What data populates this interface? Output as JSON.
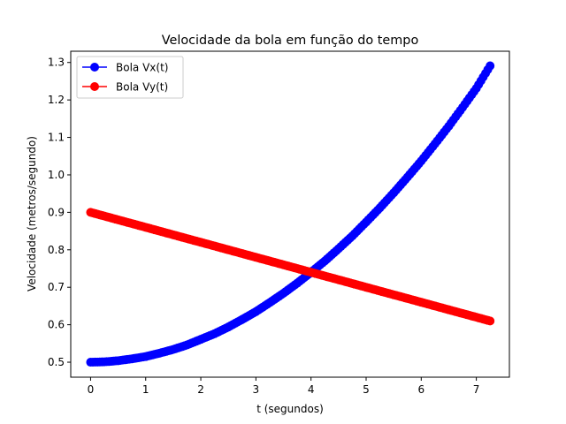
{
  "chart_data": {
    "type": "line",
    "title": "Velocidade da bola em função do tempo",
    "xlabel": "t (segundos)",
    "ylabel": "Velocidade (metros/segundo)",
    "xlim": [
      -0.36,
      7.6
    ],
    "ylim": [
      0.46,
      1.33
    ],
    "xticks": [
      0,
      1,
      2,
      3,
      4,
      5,
      6,
      7
    ],
    "yticks": [
      0.5,
      0.6,
      0.7,
      0.8,
      0.9,
      1.0,
      1.1,
      1.2,
      1.3
    ],
    "grid": false,
    "legend_position": "top-left",
    "x": [
      0,
      0.25,
      0.5,
      0.75,
      1.0,
      1.25,
      1.5,
      1.75,
      2.0,
      2.25,
      2.5,
      2.75,
      3.0,
      3.25,
      3.5,
      3.75,
      4.0,
      4.25,
      4.5,
      4.75,
      5.0,
      5.25,
      5.5,
      5.75,
      6.0,
      6.25,
      6.5,
      6.75,
      7.0,
      7.25
    ],
    "series": [
      {
        "name": "Bola Vx(t)",
        "color": "#0000ff",
        "marker": "circle",
        "values": [
          0.5,
          0.501,
          0.504,
          0.509,
          0.515,
          0.524,
          0.534,
          0.546,
          0.561,
          0.576,
          0.594,
          0.614,
          0.635,
          0.659,
          0.684,
          0.711,
          0.74,
          0.77,
          0.803,
          0.837,
          0.874,
          0.912,
          0.952,
          0.994,
          1.037,
          1.083,
          1.13,
          1.18,
          1.231,
          1.291
        ]
      },
      {
        "name": "Bola Vy(t)",
        "color": "#ff0000",
        "marker": "circle",
        "values": [
          0.9,
          0.89,
          0.88,
          0.87,
          0.86,
          0.85,
          0.84,
          0.83,
          0.82,
          0.81,
          0.8,
          0.79,
          0.78,
          0.77,
          0.76,
          0.75,
          0.74,
          0.73,
          0.72,
          0.71,
          0.7,
          0.69,
          0.68,
          0.67,
          0.66,
          0.65,
          0.64,
          0.63,
          0.62,
          0.61
        ]
      }
    ]
  }
}
